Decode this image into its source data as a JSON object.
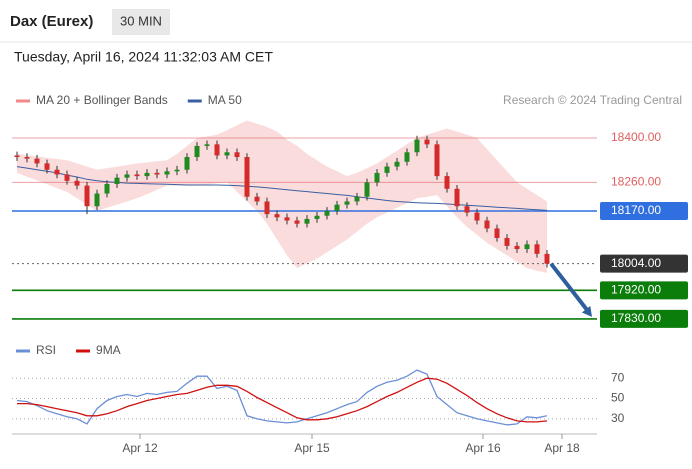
{
  "header": {
    "instrument": "Dax (Eurex)",
    "timeframe": "30 MIN",
    "datetime": "Tuesday, April 16, 2024 11:32:03 AM CET",
    "source": "Research © 2024 Trading Central"
  },
  "chart_data": [
    {
      "type": "candlestick",
      "xlim": [
        -0.5,
        58
      ],
      "ylim": [
        17795,
        18463
      ],
      "up_color": "#1f8a1f",
      "down_color": "#d42a2a",
      "open": [
        18345,
        18340,
        18335,
        18320,
        18300,
        18285,
        18265,
        18250,
        18185,
        18225,
        18255,
        18275,
        18285,
        18280,
        18290,
        18285,
        18295,
        18300,
        18340,
        18375,
        18380,
        18345,
        18355,
        18340,
        18215,
        18200,
        18160,
        18150,
        18140,
        18130,
        18145,
        18155,
        18170,
        18190,
        18200,
        18215,
        18260,
        18290,
        18310,
        18325,
        18355,
        18395,
        18380,
        18280,
        18240,
        18185,
        18165,
        18140,
        18115,
        18085,
        18060,
        18050,
        18065,
        18035
      ],
      "high": [
        18357,
        18352,
        18347,
        18332,
        18312,
        18297,
        18277,
        18262,
        18237,
        18267,
        18287,
        18297,
        18297,
        18302,
        18302,
        18307,
        18312,
        18352,
        18387,
        18392,
        18392,
        18367,
        18367,
        18352,
        18227,
        18212,
        18172,
        18162,
        18152,
        18157,
        18167,
        18182,
        18202,
        18212,
        18227,
        18272,
        18302,
        18322,
        18337,
        18367,
        18407,
        18407,
        18392,
        18292,
        18252,
        18197,
        18177,
        18152,
        18127,
        18097,
        18072,
        18077,
        18077,
        18047
      ],
      "low": [
        18328,
        18323,
        18308,
        18288,
        18273,
        18253,
        18238,
        18160,
        18173,
        18213,
        18243,
        18263,
        18268,
        18268,
        18273,
        18273,
        18283,
        18288,
        18328,
        18363,
        18333,
        18333,
        18328,
        18203,
        18188,
        18148,
        18138,
        18128,
        18118,
        18118,
        18133,
        18143,
        18158,
        18178,
        18188,
        18203,
        18248,
        18278,
        18298,
        18313,
        18343,
        18368,
        18268,
        18228,
        18173,
        18153,
        18128,
        18103,
        18073,
        18048,
        18038,
        18038,
        18023,
        17992
      ],
      "close": [
        18340,
        18335,
        18320,
        18300,
        18285,
        18265,
        18250,
        18185,
        18225,
        18255,
        18275,
        18285,
        18280,
        18290,
        18285,
        18295,
        18300,
        18340,
        18375,
        18380,
        18345,
        18355,
        18340,
        18215,
        18200,
        18160,
        18150,
        18140,
        18130,
        18145,
        18155,
        18170,
        18190,
        18200,
        18215,
        18260,
        18290,
        18310,
        18325,
        18355,
        18395,
        18380,
        18280,
        18240,
        18185,
        18165,
        18140,
        18115,
        18085,
        18060,
        18050,
        18065,
        18035,
        18004
      ],
      "bands": {
        "name": "MA 20 + Bollinger Bands",
        "color": "#f08a8a",
        "upper": [
          18350,
          18346,
          18342,
          18338,
          18334,
          18330,
          18320,
          18310,
          18300,
          18305,
          18310,
          18315,
          18320,
          18323,
          18327,
          18330,
          18350,
          18375,
          18400,
          18405,
          18410,
          18425,
          18440,
          18455,
          18445,
          18435,
          18420,
          18395,
          18375,
          18350,
          18330,
          18310,
          18295,
          18280,
          18290,
          18305,
          18320,
          18340,
          18360,
          18380,
          18400,
          18410,
          18420,
          18430,
          18420,
          18410,
          18400,
          18365,
          18330,
          18295,
          18260,
          18240,
          18220,
          18200
        ],
        "lower": [
          18290,
          18278,
          18266,
          18254,
          18242,
          18230,
          18210,
          18190,
          18170,
          18180,
          18190,
          18200,
          18210,
          18223,
          18237,
          18250,
          18250,
          18250,
          18250,
          18253,
          18257,
          18260,
          18230,
          18200,
          18170,
          18130,
          18080,
          18030,
          17990,
          18005,
          18020,
          18040,
          18060,
          18080,
          18105,
          18130,
          18150,
          18165,
          18180,
          18195,
          18210,
          18215,
          18220,
          18185,
          18150,
          18120,
          18095,
          18070,
          18050,
          18030,
          18010,
          17990,
          17982,
          17975
        ]
      },
      "series": [
        {
          "name": "MA 50",
          "color": "#3a5fa0",
          "values": [
            18310,
            18305,
            18300,
            18295,
            18290,
            18283,
            18277,
            18270,
            18265,
            18262,
            18260,
            18258,
            18257,
            18256,
            18255,
            18254,
            18253,
            18252,
            18252,
            18252,
            18252,
            18251,
            18250,
            18248,
            18246,
            18243,
            18240,
            18237,
            18234,
            18231,
            18228,
            18225,
            18222,
            18219,
            18215,
            18211,
            18207,
            18203,
            18200,
            18198,
            18196,
            18195,
            18194,
            18192,
            18190,
            18188,
            18186,
            18184,
            18182,
            18180,
            18178,
            18176,
            18174,
            18172
          ]
        }
      ],
      "levels": [
        {
          "value": 18400,
          "label": "18400.00",
          "color": "#e06060",
          "boxed": false
        },
        {
          "value": 18260,
          "label": "18260.00",
          "color": "#e06060",
          "boxed": false
        },
        {
          "value": 18170,
          "label": "18170.00",
          "color": "#2f6fe0",
          "boxed": true
        },
        {
          "value": 18004,
          "label": "18004.00",
          "color": "#333333",
          "boxed": true
        },
        {
          "value": 17920,
          "label": "17920.00",
          "color": "#0a7d0a",
          "boxed": true
        },
        {
          "value": 17830,
          "label": "17830.00",
          "color": "#0a7d0a",
          "boxed": true
        }
      ],
      "target_color": "#2d5e9e"
    },
    {
      "type": "line",
      "xlim": [
        -0.5,
        58
      ],
      "ylim": [
        19,
        83
      ],
      "yticks": [
        70,
        50,
        30
      ],
      "xticks": [
        {
          "value": 12.3,
          "label": "Apr 12"
        },
        {
          "value": 29.5,
          "label": "Apr 15"
        },
        {
          "value": 46.6,
          "label": "Apr 16"
        },
        {
          "value": 54.5,
          "label": "Apr 18"
        }
      ],
      "series": [
        {
          "name": "RSI",
          "color": "#6b8fd6",
          "values": [
            48,
            47,
            43,
            38,
            35,
            32,
            30,
            25,
            40,
            48,
            52,
            54,
            52,
            55,
            54,
            56,
            57,
            65,
            72,
            72,
            60,
            62,
            58,
            33,
            30,
            28,
            27,
            26,
            27,
            30,
            33,
            36,
            40,
            44,
            47,
            56,
            62,
            66,
            68,
            72,
            78,
            74,
            52,
            44,
            36,
            33,
            30,
            28,
            26,
            24,
            25,
            32,
            31,
            33
          ]
        },
        {
          "name": "9MA",
          "color": "#d01010",
          "values": [
            45,
            45,
            44,
            42,
            40,
            38,
            36,
            33,
            33,
            35,
            38,
            42,
            45,
            48,
            50,
            52,
            54,
            55,
            58,
            61,
            63,
            63,
            62,
            57,
            51,
            46,
            41,
            36,
            31,
            29,
            29,
            30,
            32,
            35,
            38,
            42,
            47,
            52,
            56,
            61,
            66,
            70,
            69,
            65,
            59,
            53,
            46,
            40,
            35,
            31,
            28,
            27,
            27,
            28
          ]
        }
      ]
    }
  ]
}
